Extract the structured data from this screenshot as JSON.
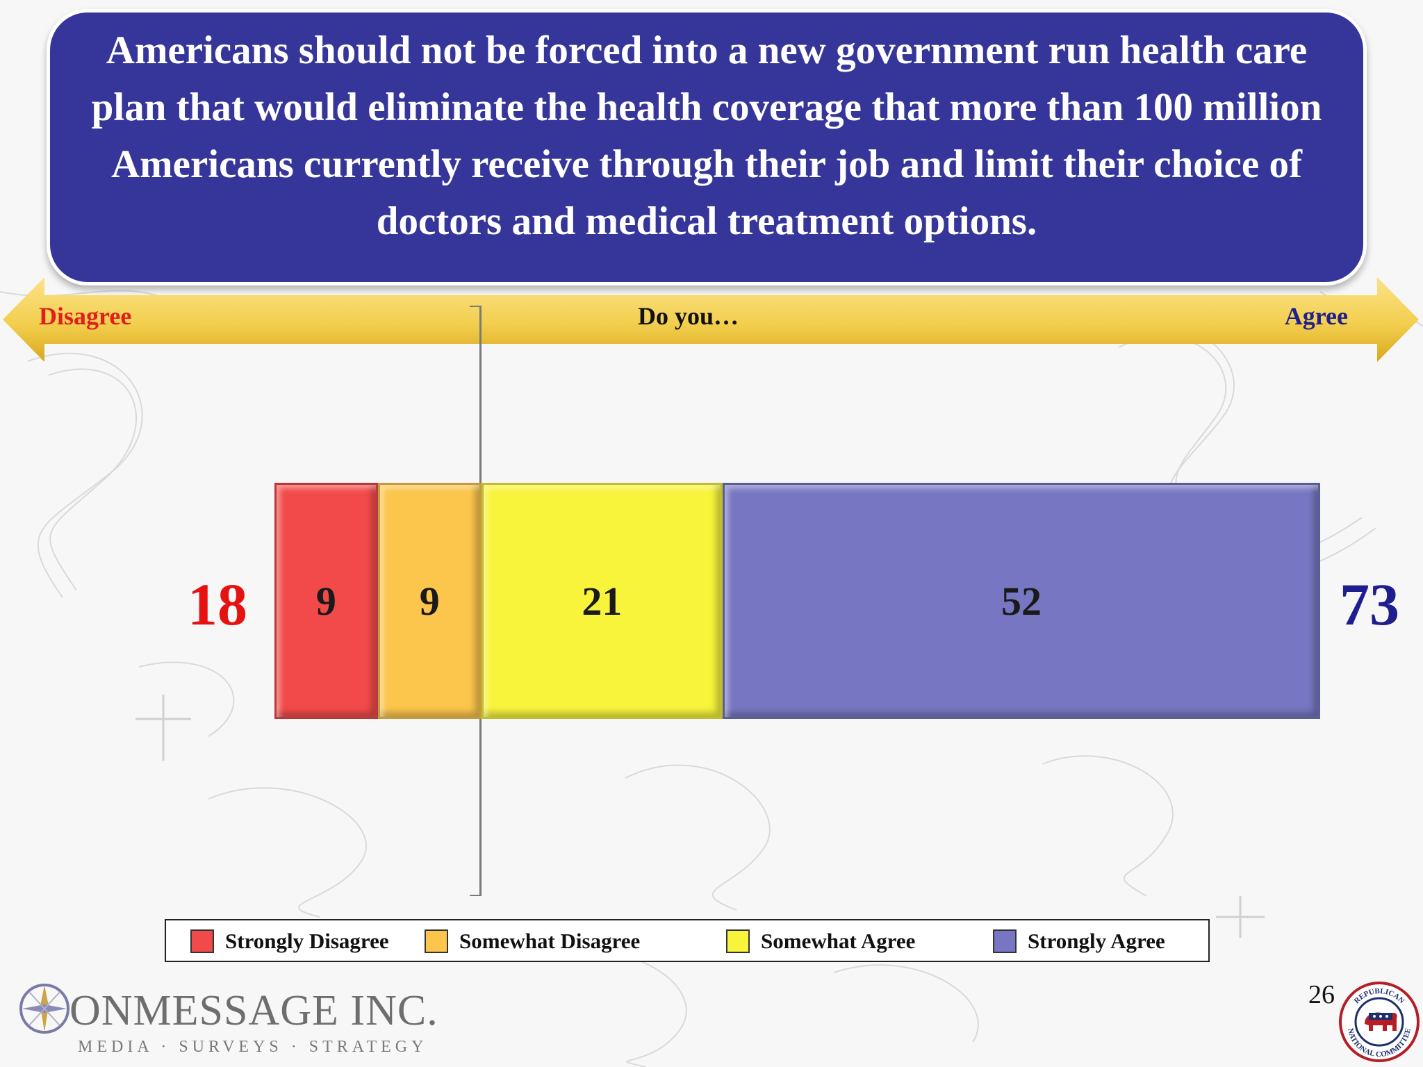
{
  "title": "Americans should not be forced into a new government run health care plan that would eliminate the health coverage that more than 100 million Americans currently receive through their job and limit their choice of doctors and medical treatment options.",
  "scale": {
    "left_label": "Disagree",
    "center_label": "Do you…",
    "right_label": "Agree"
  },
  "chart_data": {
    "type": "bar",
    "orientation": "horizontal",
    "stacked": true,
    "categories": [
      "Do you…"
    ],
    "series": [
      {
        "name": "Strongly Disagree",
        "values": [
          9
        ],
        "color": "#f24a4a"
      },
      {
        "name": "Somewhat Disagree",
        "values": [
          9
        ],
        "color": "#fcc64d"
      },
      {
        "name": "Somewhat Agree",
        "values": [
          21
        ],
        "color": "#f8f43c"
      },
      {
        "name": "Strongly Agree",
        "values": [
          52
        ],
        "color": "#7776c2"
      }
    ],
    "totals": {
      "disagree": "18",
      "agree": "73"
    },
    "legend_position": "bottom"
  },
  "footer": {
    "logo_word": "ONMESSAGE INC.",
    "logo_tagline": "MEDIA · SURVEYS · STRATEGY",
    "page_number": "26",
    "seal_top_text": "REPUBLICAN",
    "seal_bottom_text": "NATIONAL COMMITTEE"
  },
  "colors": {
    "title_bg": "#36369a",
    "disagree_text": "#e61212",
    "agree_text": "#1e1e8e",
    "arrow_gold": "#e2b62c"
  }
}
